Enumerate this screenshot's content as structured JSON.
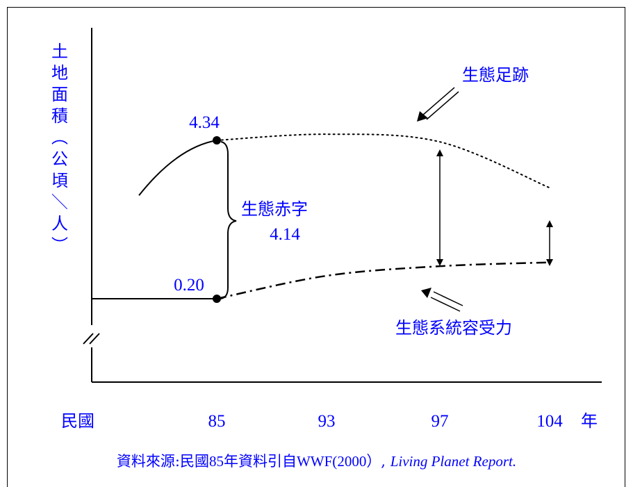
{
  "chart_data": {
    "type": "line",
    "ylabel": "土地面積（公頃／人）",
    "x_prefix": "民國",
    "x_suffix": "年",
    "categories": [
      "85",
      "93",
      "97",
      "104"
    ],
    "series": [
      {
        "name": "生態足跡",
        "style": "dotted",
        "x": [
          85,
          93,
          97,
          104
        ],
        "values": [
          4.34,
          4.5,
          4.3,
          3.1
        ]
      },
      {
        "name": "生態系統容受力",
        "style": "dash-dot",
        "x": [
          85,
          93,
          97,
          104
        ],
        "values": [
          0.2,
          0.8,
          1.05,
          1.15
        ]
      }
    ],
    "history_line": {
      "x": [
        81,
        85
      ],
      "values": [
        2.9,
        4.34
      ]
    },
    "baseline_line": {
      "x": [
        80,
        85
      ],
      "values": [
        0.2,
        0.2
      ]
    },
    "points": [
      {
        "label": "4.34",
        "x": 85,
        "value": 4.34
      },
      {
        "label": "0.20",
        "x": 85,
        "value": 0.2
      }
    ],
    "deficit": {
      "label": "生態赤字",
      "value": "4.14"
    },
    "axis_break": true,
    "colors": {
      "text": "#0000ff",
      "lines": "#000000"
    }
  },
  "source": {
    "prefix": "資料來源:民國",
    "year": "85",
    "middle": "年資料引自",
    "org": "WWF(",
    "org_year": "2000",
    "close": "）,",
    "report": "Living Planet Report."
  }
}
